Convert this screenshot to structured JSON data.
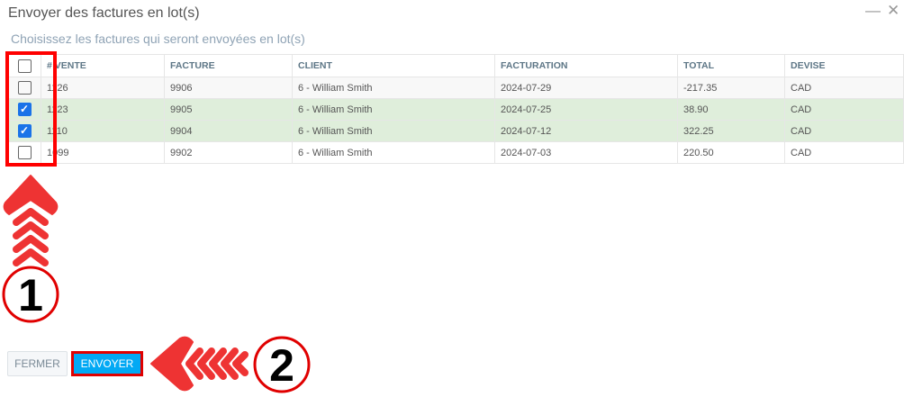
{
  "dialog": {
    "title": "Envoyer des factures en lot(s)",
    "subtitle": "Choisissez les factures qui seront envoyées en lot(s)"
  },
  "table": {
    "headers": [
      "# VENTE",
      "FACTURE",
      "CLIENT",
      "FACTURATION",
      "TOTAL",
      "DEVISE"
    ],
    "rows": [
      {
        "checked": false,
        "cells": [
          "1126",
          "9906",
          "6 - William Smith",
          "2024-07-29",
          "-217.35",
          "CAD"
        ]
      },
      {
        "checked": true,
        "cells": [
          "1123",
          "9905",
          "6 - William Smith",
          "2024-07-25",
          "38.90",
          "CAD"
        ]
      },
      {
        "checked": true,
        "cells": [
          "1110",
          "9904",
          "6 - William Smith",
          "2024-07-12",
          "322.25",
          "CAD"
        ]
      },
      {
        "checked": false,
        "cells": [
          "1099",
          "9902",
          "6 - William Smith",
          "2024-07-03",
          "220.50",
          "CAD"
        ]
      }
    ]
  },
  "buttons": {
    "close": "FERMER",
    "send": "ENVOYER"
  },
  "annotations": {
    "step1": "1",
    "step2": "2"
  },
  "colors": {
    "accent": "#03a9f4",
    "highlight": "#ff0000",
    "selected_row": "#dfeedb",
    "arrow": "#ee3333"
  }
}
